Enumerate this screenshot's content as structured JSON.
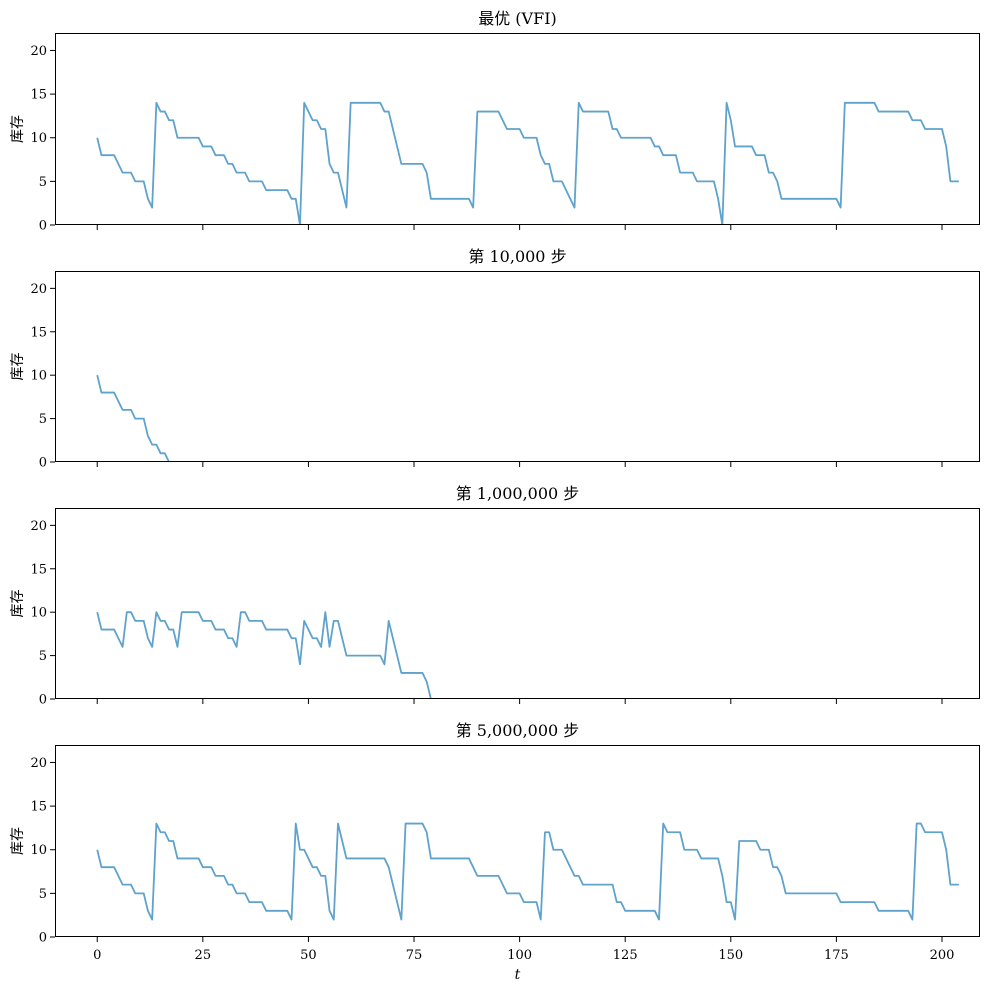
{
  "chart_data": [
    {
      "type": "line",
      "title": "最优 (VFI)",
      "ylabel": "库存",
      "xlabel": "",
      "xlim": [
        -10,
        209
      ],
      "ylim": [
        0,
        22
      ],
      "xticks": [
        0,
        25,
        50,
        75,
        100,
        125,
        150,
        175,
        200
      ],
      "yticks": [
        0,
        5,
        10,
        15,
        20
      ],
      "show_xtick_labels": false,
      "color": "#5fa2cb",
      "grid": false,
      "x_start": 0,
      "values": [
        10,
        8,
        8,
        8,
        8,
        7,
        6,
        6,
        6,
        5,
        5,
        5,
        3,
        2,
        14,
        13,
        13,
        12,
        12,
        10,
        10,
        10,
        10,
        10,
        10,
        9,
        9,
        9,
        8,
        8,
        8,
        7,
        7,
        6,
        6,
        6,
        5,
        5,
        5,
        5,
        4,
        4,
        4,
        4,
        4,
        4,
        3,
        3,
        0,
        14,
        13,
        12,
        12,
        11,
        11,
        7,
        6,
        6,
        4,
        2,
        14,
        14,
        14,
        14,
        14,
        14,
        14,
        14,
        13,
        13,
        11,
        9,
        7,
        7,
        7,
        7,
        7,
        7,
        6,
        3,
        3,
        3,
        3,
        3,
        3,
        3,
        3,
        3,
        3,
        2,
        13,
        13,
        13,
        13,
        13,
        13,
        12,
        11,
        11,
        11,
        11,
        10,
        10,
        10,
        10,
        8,
        7,
        7,
        5,
        5,
        5,
        4,
        3,
        2,
        14,
        13,
        13,
        13,
        13,
        13,
        13,
        13,
        11,
        11,
        10,
        10,
        10,
        10,
        10,
        10,
        10,
        10,
        9,
        9,
        8,
        8,
        8,
        8,
        6,
        6,
        6,
        6,
        5,
        5,
        5,
        5,
        5,
        3,
        0,
        14,
        12,
        9,
        9,
        9,
        9,
        9,
        8,
        8,
        8,
        6,
        6,
        5,
        3,
        3,
        3,
        3,
        3,
        3,
        3,
        3,
        3,
        3,
        3,
        3,
        3,
        3,
        2,
        14,
        14,
        14,
        14,
        14,
        14,
        14,
        14,
        13,
        13,
        13,
        13,
        13,
        13,
        13,
        13,
        12,
        12,
        12,
        11,
        11,
        11,
        11,
        11,
        9,
        5,
        5,
        5
      ]
    },
    {
      "type": "line",
      "title": "第 10,000 步",
      "ylabel": "库存",
      "xlabel": "",
      "xlim": [
        -10,
        209
      ],
      "ylim": [
        0,
        22
      ],
      "xticks": [
        0,
        25,
        50,
        75,
        100,
        125,
        150,
        175,
        200
      ],
      "yticks": [
        0,
        5,
        10,
        15,
        20
      ],
      "show_xtick_labels": false,
      "color": "#5fa2cb",
      "grid": false,
      "x_start": 0,
      "values": [
        10,
        8,
        8,
        8,
        8,
        7,
        6,
        6,
        6,
        5,
        5,
        5,
        3,
        2,
        2,
        1,
        1,
        0,
        0,
        0,
        0,
        0,
        0,
        0,
        0,
        0,
        0,
        0,
        0,
        0,
        0,
        0,
        0,
        0,
        0,
        0,
        0,
        0,
        0,
        0,
        0,
        0,
        0,
        0,
        0,
        0,
        0,
        0,
        0,
        0,
        0,
        0,
        0,
        0,
        0,
        0,
        0,
        0,
        0,
        0,
        0,
        0,
        0,
        0,
        0,
        0,
        0,
        0,
        0,
        0,
        0,
        0,
        0,
        0,
        0,
        0,
        0,
        0,
        0,
        0,
        0,
        0,
        0,
        0,
        0,
        0,
        0,
        0,
        0,
        0,
        0,
        0,
        0,
        0,
        0,
        0,
        0,
        0,
        0,
        0,
        0,
        0,
        0,
        0,
        0,
        0,
        0,
        0,
        0,
        0,
        0,
        0,
        0,
        0,
        0,
        0,
        0,
        0,
        0,
        0,
        0,
        0,
        0,
        0,
        0,
        0,
        0,
        0,
        0,
        0,
        0,
        0,
        0,
        0,
        0,
        0,
        0,
        0,
        0,
        0,
        0,
        0,
        0,
        0,
        0,
        0,
        0,
        0,
        0,
        0,
        0,
        0,
        0,
        0,
        0,
        0,
        0,
        0,
        0,
        0,
        0,
        0,
        0,
        0,
        0,
        0,
        0,
        0,
        0,
        0,
        0,
        0,
        0,
        0,
        0,
        0,
        0,
        0,
        0,
        0,
        0,
        0,
        0,
        0,
        0,
        0,
        0,
        0,
        0,
        0,
        0,
        0,
        0,
        0,
        0,
        0,
        0,
        0,
        0,
        0
      ]
    },
    {
      "type": "line",
      "title": "第 1,000,000 步",
      "ylabel": "库存",
      "xlabel": "",
      "xlim": [
        -10,
        209
      ],
      "ylim": [
        0,
        22
      ],
      "xticks": [
        0,
        25,
        50,
        75,
        100,
        125,
        150,
        175,
        200
      ],
      "yticks": [
        0,
        5,
        10,
        15,
        20
      ],
      "show_xtick_labels": false,
      "color": "#5fa2cb",
      "grid": false,
      "x_start": 0,
      "values": [
        10,
        8,
        8,
        8,
        8,
        7,
        6,
        10,
        10,
        9,
        9,
        9,
        7,
        6,
        10,
        9,
        9,
        8,
        8,
        6,
        10,
        10,
        10,
        10,
        10,
        9,
        9,
        9,
        8,
        8,
        8,
        7,
        7,
        6,
        10,
        10,
        9,
        9,
        9,
        9,
        8,
        8,
        8,
        8,
        8,
        8,
        7,
        7,
        4,
        9,
        8,
        7,
        7,
        6,
        10,
        6,
        9,
        9,
        7,
        5,
        5,
        5,
        5,
        5,
        5,
        5,
        5,
        5,
        4,
        9,
        7,
        5,
        3,
        3,
        3,
        3,
        3,
        3,
        2,
        0,
        0,
        0,
        0,
        0,
        0,
        0,
        0,
        0,
        0,
        0,
        0,
        0,
        0,
        0,
        0,
        0,
        0,
        0,
        0,
        0,
        0,
        0,
        0,
        0,
        0,
        0,
        0,
        0,
        0,
        0,
        0,
        0,
        0,
        0,
        0,
        0,
        0,
        0,
        0,
        0,
        0,
        0,
        0,
        0,
        0,
        0,
        0,
        0,
        0,
        0,
        0,
        0,
        0,
        0,
        0,
        0,
        0,
        0,
        0,
        0,
        0,
        0,
        0,
        0,
        0,
        0,
        0,
        0,
        0,
        0,
        0,
        0,
        0,
        0,
        0,
        0,
        0,
        0,
        0,
        0,
        0,
        0,
        0,
        0,
        0,
        0,
        0,
        0,
        0,
        0,
        0,
        0,
        0,
        0,
        0,
        0,
        0,
        0,
        0,
        0,
        0,
        0,
        0,
        0,
        0,
        0,
        0,
        0,
        0,
        0,
        0,
        0,
        0,
        0,
        0,
        0,
        0,
        0,
        0,
        0
      ]
    },
    {
      "type": "line",
      "title": "第 5,000,000 步",
      "ylabel": "库存",
      "xlabel": "t",
      "xlim": [
        -10,
        209
      ],
      "ylim": [
        0,
        22
      ],
      "xticks": [
        0,
        25,
        50,
        75,
        100,
        125,
        150,
        175,
        200
      ],
      "yticks": [
        0,
        5,
        10,
        15,
        20
      ],
      "show_xtick_labels": true,
      "color": "#5fa2cb",
      "grid": false,
      "x_start": 0,
      "values": [
        10,
        8,
        8,
        8,
        8,
        7,
        6,
        6,
        6,
        5,
        5,
        5,
        3,
        2,
        13,
        12,
        12,
        11,
        11,
        9,
        9,
        9,
        9,
        9,
        9,
        8,
        8,
        8,
        7,
        7,
        7,
        6,
        6,
        5,
        5,
        5,
        4,
        4,
        4,
        4,
        3,
        3,
        3,
        3,
        3,
        3,
        2,
        13,
        10,
        10,
        9,
        8,
        8,
        7,
        7,
        3,
        2,
        13,
        11,
        9,
        9,
        9,
        9,
        9,
        9,
        9,
        9,
        9,
        9,
        8,
        6,
        4,
        2,
        13,
        13,
        13,
        13,
        13,
        12,
        9,
        9,
        9,
        9,
        9,
        9,
        9,
        9,
        9,
        9,
        8,
        7,
        7,
        7,
        7,
        7,
        7,
        6,
        5,
        5,
        5,
        5,
        4,
        4,
        4,
        4,
        2,
        12,
        12,
        10,
        10,
        10,
        9,
        8,
        7,
        7,
        6,
        6,
        6,
        6,
        6,
        6,
        6,
        6,
        4,
        4,
        3,
        3,
        3,
        3,
        3,
        3,
        3,
        3,
        2,
        13,
        12,
        12,
        12,
        12,
        10,
        10,
        10,
        10,
        9,
        9,
        9,
        9,
        9,
        7,
        4,
        4,
        2,
        11,
        11,
        11,
        11,
        11,
        10,
        10,
        10,
        8,
        8,
        7,
        5,
        5,
        5,
        5,
        5,
        5,
        5,
        5,
        5,
        5,
        5,
        5,
        5,
        4,
        4,
        4,
        4,
        4,
        4,
        4,
        4,
        4,
        3,
        3,
        3,
        3,
        3,
        3,
        3,
        3,
        2,
        13,
        13,
        12,
        12,
        12,
        12,
        12,
        10,
        6,
        6,
        6
      ]
    }
  ]
}
